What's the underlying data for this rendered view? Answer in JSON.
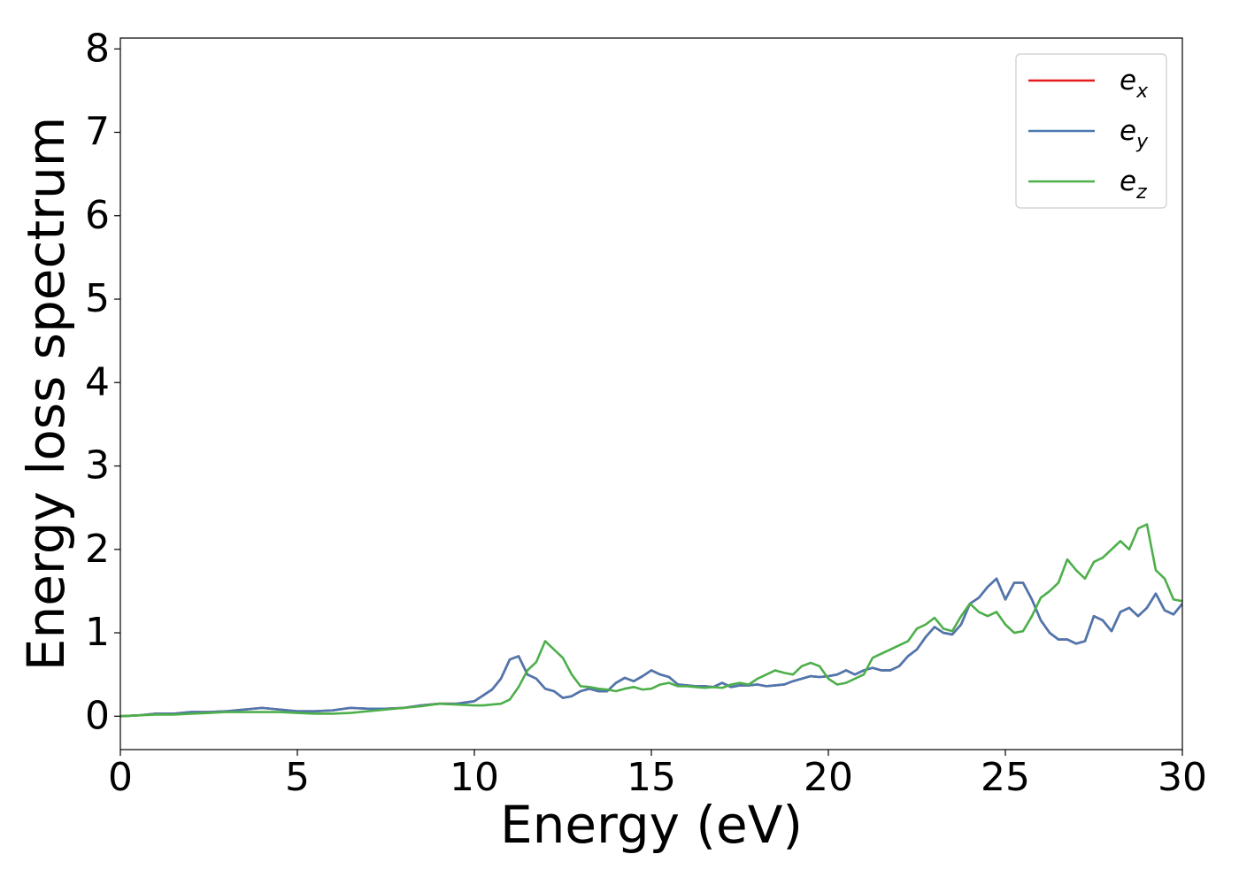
{
  "chart_data": {
    "type": "line",
    "x_label": "Energy (eV)",
    "y_label": "Energy loss spectrum",
    "xlim": [
      0,
      30
    ],
    "ylim": [
      -0.4,
      8.13
    ],
    "xticks": [
      0,
      5,
      10,
      15,
      20,
      25,
      30
    ],
    "yticks": [
      0,
      1,
      2,
      3,
      4,
      5,
      6,
      7,
      8
    ],
    "legend": "upper right",
    "x": [
      0,
      0.5,
      1,
      1.5,
      2,
      2.5,
      3,
      3.5,
      4,
      4.5,
      5,
      5.5,
      6,
      6.5,
      7,
      7.5,
      8,
      8.5,
      9,
      9.5,
      10,
      10.25,
      10.5,
      10.75,
      11,
      11.25,
      11.5,
      11.75,
      12,
      12.25,
      12.5,
      12.75,
      13,
      13.25,
      13.5,
      13.75,
      14,
      14.25,
      14.5,
      14.75,
      15,
      15.25,
      15.5,
      15.75,
      16,
      16.25,
      16.5,
      16.75,
      17,
      17.25,
      17.5,
      17.75,
      18,
      18.25,
      18.5,
      18.75,
      19,
      19.25,
      19.5,
      19.75,
      20,
      20.25,
      20.5,
      20.75,
      21,
      21.25,
      21.5,
      21.75,
      22,
      22.25,
      22.5,
      22.75,
      23,
      23.25,
      23.5,
      23.75,
      24,
      24.25,
      24.5,
      24.75,
      25,
      25.25,
      25.5,
      25.75,
      26,
      26.25,
      26.5,
      26.75,
      27,
      27.25,
      27.5,
      27.75,
      28,
      28.25,
      28.5,
      28.75,
      29,
      29.25,
      29.5,
      29.75,
      30
    ],
    "series": [
      {
        "name": "e_x",
        "color": "#e41a1c",
        "values": [
          0.0,
          0.01,
          0.03,
          0.03,
          0.05,
          0.05,
          0.06,
          0.08,
          0.1,
          0.08,
          0.06,
          0.06,
          0.07,
          0.1,
          0.09,
          0.09,
          0.1,
          0.13,
          0.15,
          0.15,
          0.18,
          0.25,
          0.32,
          0.45,
          0.68,
          0.72,
          0.5,
          0.45,
          0.33,
          0.3,
          0.22,
          0.24,
          0.3,
          0.33,
          0.3,
          0.3,
          0.4,
          0.46,
          0.42,
          0.48,
          0.55,
          0.5,
          0.47,
          0.38,
          0.37,
          0.36,
          0.36,
          0.35,
          0.4,
          0.35,
          0.37,
          0.37,
          0.38,
          0.36,
          0.37,
          0.38,
          0.42,
          0.45,
          0.48,
          0.47,
          0.48,
          0.5,
          0.55,
          0.5,
          0.55,
          0.58,
          0.55,
          0.55,
          0.6,
          0.72,
          0.8,
          0.95,
          1.07,
          1.0,
          0.98,
          1.1,
          1.35,
          1.42,
          1.55,
          1.65,
          1.4,
          1.6,
          1.6,
          1.4,
          1.15,
          1.0,
          0.92,
          0.92,
          0.87,
          0.9,
          1.2,
          1.15,
          1.02,
          1.25,
          1.3,
          1.2,
          1.3,
          1.47,
          1.27,
          1.22,
          1.35
        ]
      },
      {
        "name": "e_y",
        "color": "#4a78b0",
        "values": [
          0.0,
          0.01,
          0.03,
          0.03,
          0.05,
          0.05,
          0.06,
          0.08,
          0.1,
          0.08,
          0.06,
          0.06,
          0.07,
          0.1,
          0.09,
          0.09,
          0.1,
          0.13,
          0.15,
          0.15,
          0.18,
          0.25,
          0.32,
          0.45,
          0.68,
          0.72,
          0.5,
          0.45,
          0.33,
          0.3,
          0.22,
          0.24,
          0.3,
          0.33,
          0.3,
          0.3,
          0.4,
          0.46,
          0.42,
          0.48,
          0.55,
          0.5,
          0.47,
          0.38,
          0.37,
          0.36,
          0.36,
          0.35,
          0.4,
          0.35,
          0.37,
          0.37,
          0.38,
          0.36,
          0.37,
          0.38,
          0.42,
          0.45,
          0.48,
          0.47,
          0.48,
          0.5,
          0.55,
          0.5,
          0.55,
          0.58,
          0.55,
          0.55,
          0.6,
          0.72,
          0.8,
          0.95,
          1.07,
          1.0,
          0.98,
          1.1,
          1.35,
          1.42,
          1.55,
          1.65,
          1.4,
          1.6,
          1.6,
          1.4,
          1.15,
          1.0,
          0.92,
          0.92,
          0.87,
          0.9,
          1.2,
          1.15,
          1.02,
          1.25,
          1.3,
          1.2,
          1.3,
          1.47,
          1.27,
          1.22,
          1.35
        ]
      },
      {
        "name": "e_z",
        "color": "#4daf4a",
        "values": [
          0.0,
          0.01,
          0.02,
          0.02,
          0.03,
          0.04,
          0.05,
          0.05,
          0.05,
          0.05,
          0.04,
          0.03,
          0.03,
          0.04,
          0.06,
          0.08,
          0.1,
          0.12,
          0.15,
          0.14,
          0.13,
          0.13,
          0.14,
          0.15,
          0.2,
          0.35,
          0.55,
          0.65,
          0.9,
          0.8,
          0.7,
          0.5,
          0.36,
          0.35,
          0.33,
          0.32,
          0.3,
          0.33,
          0.35,
          0.32,
          0.33,
          0.38,
          0.4,
          0.36,
          0.36,
          0.35,
          0.34,
          0.35,
          0.34,
          0.38,
          0.4,
          0.38,
          0.45,
          0.5,
          0.55,
          0.52,
          0.5,
          0.6,
          0.64,
          0.6,
          0.45,
          0.38,
          0.4,
          0.45,
          0.5,
          0.7,
          0.75,
          0.8,
          0.85,
          0.9,
          1.05,
          1.1,
          1.18,
          1.05,
          1.02,
          1.2,
          1.35,
          1.25,
          1.2,
          1.25,
          1.1,
          1.0,
          1.02,
          1.2,
          1.42,
          1.5,
          1.6,
          1.88,
          1.75,
          1.65,
          1.85,
          1.9,
          2.0,
          2.1,
          2.0,
          2.25,
          2.3,
          1.75,
          1.65,
          1.4,
          1.38
        ]
      }
    ]
  }
}
